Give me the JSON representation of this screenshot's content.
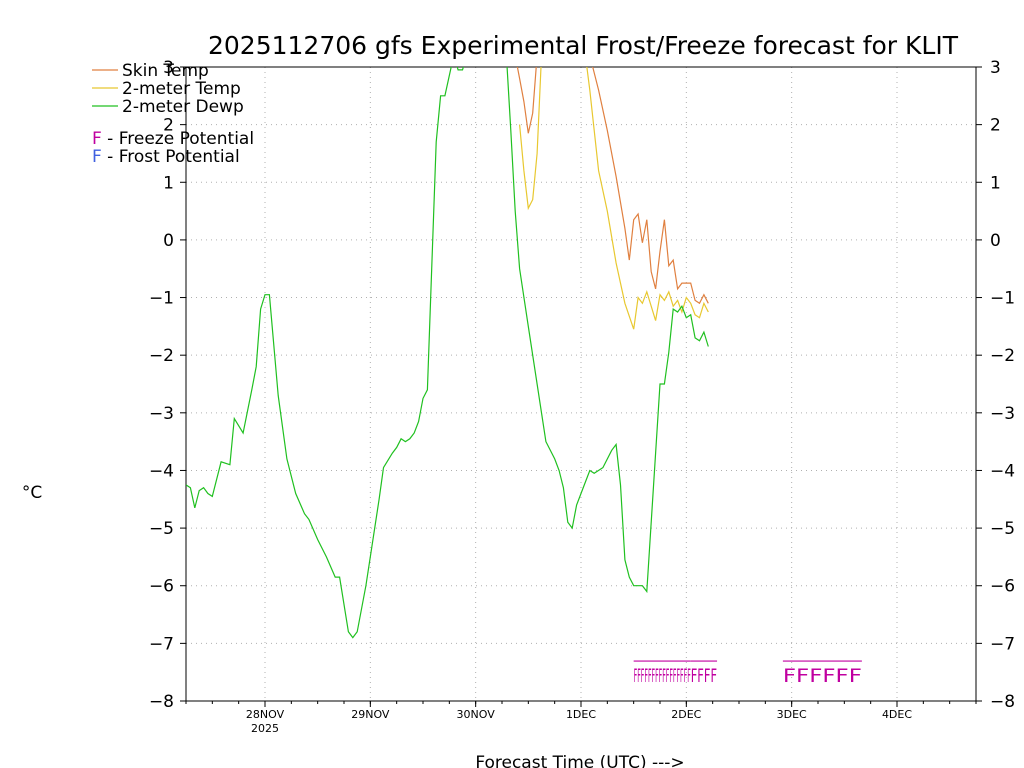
{
  "chart_data": {
    "type": "line",
    "title": "2025112706 gfs Experimental Frost/Freeze forecast for KLIT",
    "xlabel": "Forecast Time (UTC) --->",
    "ylabel": "°C",
    "ylim": [
      -8,
      3
    ],
    "xlim": [
      "2025-11-27T06",
      "2025-12-04T18"
    ],
    "yticks": [
      -8,
      -7,
      -6,
      -5,
      -4,
      -3,
      -2,
      -1,
      0,
      1,
      2,
      3
    ],
    "xticks": [
      {
        "label": "28NOV",
        "sub": "2025",
        "x": "2025-11-28T00"
      },
      {
        "label": "29NOV",
        "sub": "",
        "x": "2025-11-29T00"
      },
      {
        "label": "30NOV",
        "sub": "",
        "x": "2025-11-30T00"
      },
      {
        "label": "1DEC",
        "sub": "",
        "x": "2025-12-01T00"
      },
      {
        "label": "2DEC",
        "sub": "",
        "x": "2025-12-02T00"
      },
      {
        "label": "3DEC",
        "sub": "",
        "x": "2025-12-03T00"
      },
      {
        "label": "4DEC",
        "sub": "",
        "x": "2025-12-04T00"
      }
    ],
    "grid": true,
    "legend": {
      "position": "top-left",
      "entries": [
        {
          "name": "Skin Temp",
          "color": "#e08040"
        },
        {
          "name": "2-meter Temp",
          "color": "#e8c830"
        },
        {
          "name": "2-meter Dewp",
          "color": "#20c020"
        }
      ],
      "potentials": [
        {
          "letter": "F",
          "text": " - Freeze Potential",
          "color": "#c000a0"
        },
        {
          "letter": "F",
          "text": " - Frost Potential",
          "color": "#4060e0"
        }
      ]
    },
    "series": [
      {
        "name": "Skin Temp",
        "color": "#e08040",
        "points": [
          [
            "2025-11-30T09",
            3.2
          ],
          [
            "2025-11-30T10",
            2.8
          ],
          [
            "2025-11-30T11",
            2.4
          ],
          [
            "2025-11-30T12",
            1.85
          ],
          [
            "2025-11-30T13",
            2.2
          ],
          [
            "2025-11-30T14",
            3.2
          ],
          [
            "2025-12-01T02",
            3.2
          ],
          [
            "2025-12-01T04",
            2.6
          ],
          [
            "2025-12-01T06",
            1.9
          ],
          [
            "2025-12-01T08",
            1.1
          ],
          [
            "2025-12-01T10",
            0.2
          ],
          [
            "2025-12-01T11",
            -0.35
          ],
          [
            "2025-12-01T12",
            0.35
          ],
          [
            "2025-12-01T13",
            0.45
          ],
          [
            "2025-12-01T14",
            -0.05
          ],
          [
            "2025-12-01T15",
            0.35
          ],
          [
            "2025-12-01T16",
            -0.55
          ],
          [
            "2025-12-01T17",
            -0.85
          ],
          [
            "2025-12-01T18",
            -0.2
          ],
          [
            "2025-12-01T19",
            0.35
          ],
          [
            "2025-12-01T20",
            -0.45
          ],
          [
            "2025-12-01T21",
            -0.35
          ],
          [
            "2025-12-01T22",
            -0.85
          ],
          [
            "2025-12-01T23",
            -0.75
          ],
          [
            "2025-12-02T00",
            -0.75
          ],
          [
            "2025-12-02T01",
            -0.75
          ],
          [
            "2025-12-02T02",
            -1.05
          ],
          [
            "2025-12-02T03",
            -1.1
          ],
          [
            "2025-12-02T04",
            -0.95
          ],
          [
            "2025-12-02T05",
            -1.1
          ]
        ]
      },
      {
        "name": "2-meter Temp",
        "color": "#e8c830",
        "points": [
          [
            "2025-11-30T10",
            2.0
          ],
          [
            "2025-11-30T11",
            1.2
          ],
          [
            "2025-11-30T12",
            0.55
          ],
          [
            "2025-11-30T13",
            0.7
          ],
          [
            "2025-11-30T14",
            1.5
          ],
          [
            "2025-11-30T15",
            3.2
          ],
          [
            "2025-12-01T01",
            3.2
          ],
          [
            "2025-12-01T02",
            2.6
          ],
          [
            "2025-12-01T04",
            1.2
          ],
          [
            "2025-12-01T06",
            0.5
          ],
          [
            "2025-12-01T08",
            -0.4
          ],
          [
            "2025-12-01T10",
            -1.1
          ],
          [
            "2025-12-01T12",
            -1.55
          ],
          [
            "2025-12-01T13",
            -1.0
          ],
          [
            "2025-12-01T14",
            -1.1
          ],
          [
            "2025-12-01T15",
            -0.9
          ],
          [
            "2025-12-01T16",
            -1.15
          ],
          [
            "2025-12-01T17",
            -1.4
          ],
          [
            "2025-12-01T18",
            -0.95
          ],
          [
            "2025-12-01T19",
            -1.05
          ],
          [
            "2025-12-01T20",
            -0.9
          ],
          [
            "2025-12-01T21",
            -1.15
          ],
          [
            "2025-12-01T22",
            -1.05
          ],
          [
            "2025-12-01T23",
            -1.25
          ],
          [
            "2025-12-02T00",
            -1.0
          ],
          [
            "2025-12-02T01",
            -1.1
          ],
          [
            "2025-12-02T02",
            -1.3
          ],
          [
            "2025-12-02T03",
            -1.35
          ],
          [
            "2025-12-02T04",
            -1.1
          ],
          [
            "2025-12-02T05",
            -1.25
          ]
        ]
      },
      {
        "name": "2-meter Dewp",
        "color": "#20c020",
        "points": [
          [
            "2025-11-27T06",
            -4.25
          ],
          [
            "2025-11-27T07",
            -4.3
          ],
          [
            "2025-11-27T08",
            -4.65
          ],
          [
            "2025-11-27T09",
            -4.35
          ],
          [
            "2025-11-27T10",
            -4.3
          ],
          [
            "2025-11-27T11",
            -4.4
          ],
          [
            "2025-11-27T12",
            -4.45
          ],
          [
            "2025-11-27T14",
            -3.85
          ],
          [
            "2025-11-27T16",
            -3.9
          ],
          [
            "2025-11-27T17",
            -3.1
          ],
          [
            "2025-11-27T19",
            -3.35
          ],
          [
            "2025-11-27T21",
            -2.6
          ],
          [
            "2025-11-27T22",
            -2.2
          ],
          [
            "2025-11-27T23",
            -1.2
          ],
          [
            "2025-11-28T00",
            -0.95
          ],
          [
            "2025-11-28T01",
            -0.95
          ],
          [
            "2025-11-28T03",
            -2.7
          ],
          [
            "2025-11-28T05",
            -3.8
          ],
          [
            "2025-11-28T07",
            -4.4
          ],
          [
            "2025-11-28T09",
            -4.75
          ],
          [
            "2025-11-28T10",
            -4.85
          ],
          [
            "2025-11-28T12",
            -5.2
          ],
          [
            "2025-11-28T14",
            -5.5
          ],
          [
            "2025-11-28T16",
            -5.85
          ],
          [
            "2025-11-28T17",
            -5.85
          ],
          [
            "2025-11-28T19",
            -6.8
          ],
          [
            "2025-11-28T20",
            -6.9
          ],
          [
            "2025-11-28T21",
            -6.8
          ],
          [
            "2025-11-28T23",
            -6.0
          ],
          [
            "2025-11-29T01",
            -5.0
          ],
          [
            "2025-11-29T02",
            -4.5
          ],
          [
            "2025-11-29T03",
            -3.95
          ],
          [
            "2025-11-29T05",
            -3.7
          ],
          [
            "2025-11-29T06",
            -3.6
          ],
          [
            "2025-11-29T07",
            -3.45
          ],
          [
            "2025-11-29T08",
            -3.5
          ],
          [
            "2025-11-29T09",
            -3.45
          ],
          [
            "2025-11-29T10",
            -3.35
          ],
          [
            "2025-11-29T11",
            -3.15
          ],
          [
            "2025-11-29T12",
            -2.75
          ],
          [
            "2025-11-29T13",
            -2.6
          ],
          [
            "2025-11-29T15",
            1.7
          ],
          [
            "2025-11-29T16",
            2.5
          ],
          [
            "2025-11-29T17",
            2.5
          ],
          [
            "2025-11-29T19",
            3.2
          ],
          [
            "2025-11-29T20",
            2.95
          ],
          [
            "2025-11-29T21",
            2.95
          ],
          [
            "2025-11-29T22",
            3.2
          ],
          [
            "2025-11-30T07",
            3.2
          ],
          [
            "2025-11-30T08",
            1.9
          ],
          [
            "2025-11-30T09",
            0.5
          ],
          [
            "2025-11-30T10",
            -0.5
          ],
          [
            "2025-11-30T12",
            -1.5
          ],
          [
            "2025-11-30T14",
            -2.5
          ],
          [
            "2025-11-30T16",
            -3.5
          ],
          [
            "2025-11-30T18",
            -3.8
          ],
          [
            "2025-11-30T19",
            -4.0
          ],
          [
            "2025-11-30T20",
            -4.3
          ],
          [
            "2025-11-30T21",
            -4.9
          ],
          [
            "2025-11-30T22",
            -5.0
          ],
          [
            "2025-11-30T23",
            -4.6
          ],
          [
            "2025-12-01T01",
            -4.2
          ],
          [
            "2025-12-01T02",
            -4.0
          ],
          [
            "2025-12-01T03",
            -4.05
          ],
          [
            "2025-12-01T05",
            -3.95
          ],
          [
            "2025-12-01T07",
            -3.65
          ],
          [
            "2025-12-01T08",
            -3.55
          ],
          [
            "2025-12-01T09",
            -4.25
          ],
          [
            "2025-12-01T10",
            -5.55
          ],
          [
            "2025-12-01T11",
            -5.85
          ],
          [
            "2025-12-01T12",
            -6.0
          ],
          [
            "2025-12-01T14",
            -6.0
          ],
          [
            "2025-12-01T15",
            -6.1
          ],
          [
            "2025-12-01T17",
            -3.7
          ],
          [
            "2025-12-01T18",
            -2.5
          ],
          [
            "2025-12-01T19",
            -2.5
          ],
          [
            "2025-12-01T20",
            -1.95
          ],
          [
            "2025-12-01T21",
            -1.2
          ],
          [
            "2025-12-01T22",
            -1.25
          ],
          [
            "2025-12-01T23",
            -1.15
          ],
          [
            "2025-12-02T00",
            -1.35
          ],
          [
            "2025-12-02T01",
            -1.3
          ],
          [
            "2025-12-02T02",
            -1.7
          ],
          [
            "2025-12-02T03",
            -1.75
          ],
          [
            "2025-12-02T04",
            -1.6
          ],
          [
            "2025-12-02T05",
            -1.85
          ]
        ]
      }
    ],
    "freeze_flags": {
      "color": "#c000a0",
      "y": -7.55,
      "groups": [
        {
          "text": "FFFFFFFFFFFFFFFF",
          "start": "2025-12-01T12",
          "end": "2025-12-02T01"
        },
        {
          "text": "FFFF",
          "start": "2025-12-02T01",
          "end": "2025-12-02T07"
        },
        {
          "text": "FFFFFF",
          "start": "2025-12-02T22",
          "end": "2025-12-03T16"
        }
      ]
    }
  }
}
